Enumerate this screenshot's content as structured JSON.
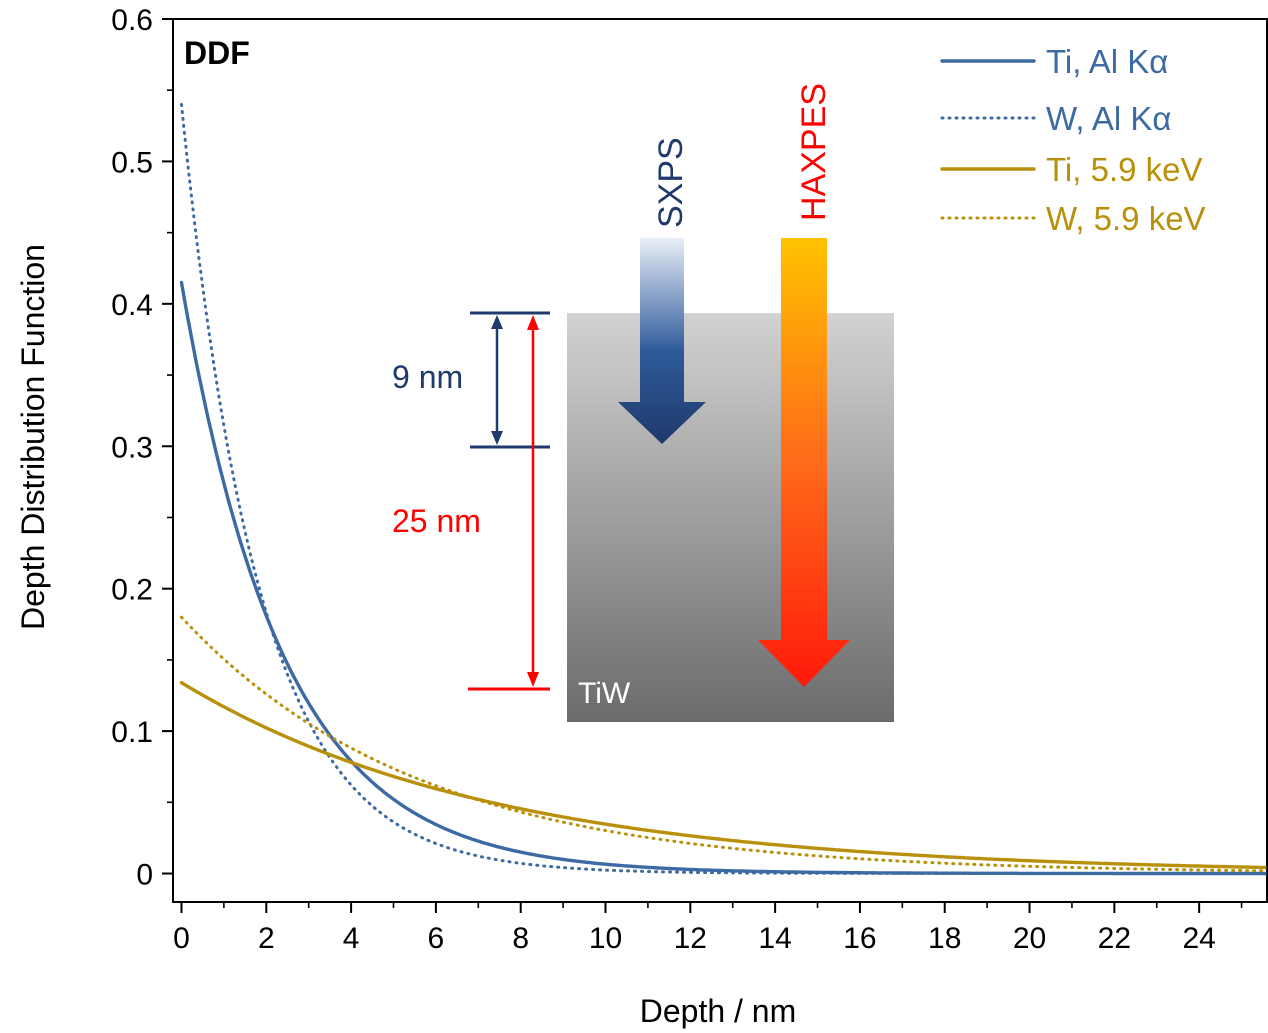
{
  "chart_data": {
    "type": "line",
    "title": "DDF",
    "xlabel": "Depth / nm",
    "ylabel": "Depth Distribution Function",
    "xlim": [
      -0.2,
      25.6
    ],
    "ylim": [
      -0.02,
      0.6
    ],
    "grid": false,
    "legend_position": "top-right",
    "x_ticks": [
      0,
      2,
      4,
      6,
      8,
      10,
      12,
      14,
      16,
      18,
      20,
      22,
      24
    ],
    "x_tick_labels": [
      "0",
      "2",
      "4",
      "6",
      "8",
      "10",
      "12",
      "14",
      "16",
      "18",
      "20",
      "22",
      "24"
    ],
    "y_ticks": [
      0,
      0.1,
      0.2,
      0.3,
      0.4,
      0.5,
      0.6
    ],
    "y_tick_labels": [
      "0",
      "0.1",
      "0.2",
      "0.3",
      "0.4",
      "0.5",
      "0.6"
    ],
    "series": [
      {
        "name": "Ti, Al Kα",
        "style": "solid",
        "color": "#3d6aa3",
        "y0": 0.415,
        "decay_length_nm": 2.41
      },
      {
        "name": "W, Al Kα",
        "style": "dotted",
        "color": "#3d6aa3",
        "y0": 0.54,
        "decay_length_nm": 1.85
      },
      {
        "name": "Ti, 5.9 keV",
        "style": "solid",
        "color": "#b8900a",
        "y0": 0.134,
        "decay_length_nm": 7.4
      },
      {
        "name": "W, 5.9 keV",
        "style": "dotted",
        "color": "#b8900a",
        "y0": 0.18,
        "decay_length_nm": 5.6
      }
    ],
    "annotations": {
      "sxps_label": "SXPS",
      "haxpes_label": "HAXPES",
      "sample_label": "TiW",
      "sxps_depth_label": "9 nm",
      "haxpes_depth_label": "25 nm",
      "sxps_color": "#1f3a6b",
      "haxpes_color": "#ff0000"
    }
  }
}
